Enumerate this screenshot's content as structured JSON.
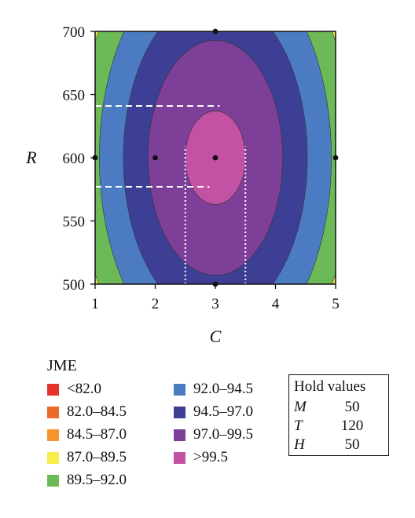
{
  "chart_data": {
    "type": "contour",
    "x": {
      "label": "C",
      "ticks": [
        1,
        2,
        3,
        4,
        5
      ],
      "range": [
        1,
        5
      ]
    },
    "y": {
      "label": "R",
      "ticks": [
        500,
        550,
        600,
        650,
        700
      ],
      "range": [
        500,
        700
      ]
    },
    "center": {
      "x": 3,
      "y": 600
    },
    "contour_levels": [
      {
        "level": 99.5,
        "semi_axis_C": 0.5,
        "semi_axis_R": 37
      },
      {
        "level": 97.0,
        "semi_axis_C": 1.12,
        "semi_axis_R": 93
      },
      {
        "level": 94.5,
        "semi_axis_C": 1.53,
        "semi_axis_R": 128
      },
      {
        "level": 92.0,
        "semi_axis_C": 1.93,
        "semi_axis_R": 162
      },
      {
        "level": 89.5,
        "semi_axis_C": 2.28,
        "semi_axis_R": 191
      },
      {
        "level": 87.0,
        "semi_axis_C": 2.62,
        "semi_axis_R": 220
      },
      {
        "level": 84.5,
        "semi_axis_C": 2.94,
        "semi_axis_R": 247
      },
      {
        "level": 82.0,
        "semi_axis_C": 3.22,
        "semi_axis_R": 270
      }
    ],
    "design_points": [
      {
        "C": 1,
        "R": 600
      },
      {
        "C": 2,
        "R": 600
      },
      {
        "C": 3,
        "R": 600
      },
      {
        "C": 5,
        "R": 600
      },
      {
        "C": 3,
        "R": 700
      },
      {
        "C": 3,
        "R": 500
      }
    ],
    "dashed_guides": [
      {
        "orientation": "horizontal",
        "R": 641,
        "C_from": 1,
        "C_to": 3.07
      },
      {
        "orientation": "horizontal",
        "R": 577,
        "C_from": 1,
        "C_to": 2.9
      }
    ],
    "dotted_guides": [
      {
        "orientation": "vertical",
        "C": 2.5,
        "R_from": 500,
        "R_to": 609
      },
      {
        "orientation": "vertical",
        "C": 3.5,
        "R_from": 500,
        "R_to": 609
      }
    ],
    "legend": {
      "title": "JME",
      "placement": "bottom",
      "items": [
        {
          "label": "<82.0",
          "color": "#e8332a"
        },
        {
          "label": "82.0–84.5",
          "color": "#ec6c27"
        },
        {
          "label": "84.5–87.0",
          "color": "#f5952c"
        },
        {
          "label": "87.0–89.5",
          "color": "#f8ec4a"
        },
        {
          "label": "89.5–92.0",
          "color": "#6cba57"
        },
        {
          "label": "92.0–94.5",
          "color": "#4b7cc2"
        },
        {
          "label": "94.5–97.0",
          "color": "#3d3f95"
        },
        {
          "label": "97.0–99.5",
          "color": "#7d3f98"
        },
        {
          "label": ">99.5",
          "color": "#c351a4"
        }
      ]
    },
    "hold_values": {
      "title": "Hold values",
      "rows": [
        {
          "name": "M",
          "value": "50"
        },
        {
          "name": "T",
          "value": "120"
        },
        {
          "name": "H",
          "value": "50"
        }
      ]
    }
  }
}
